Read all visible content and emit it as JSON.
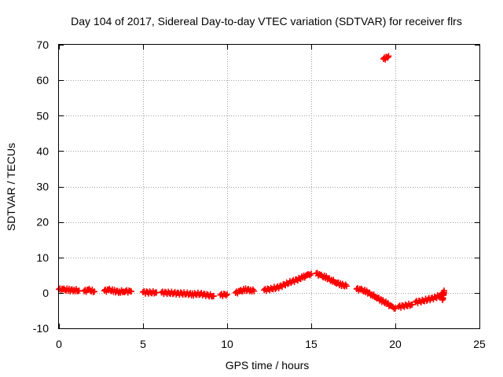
{
  "chart_data": {
    "type": "scatter",
    "title": "Day 104 of 2017, Sidereal Day-to-day VTEC variation (SDTVAR) for receiver flrs",
    "xlabel": "GPS time / hours",
    "ylabel": "SDTVAR / TECUs",
    "xlim": [
      0,
      25
    ],
    "ylim": [
      -10,
      70
    ],
    "xticks": [
      0,
      5,
      10,
      15,
      20,
      25
    ],
    "yticks": [
      -10,
      0,
      10,
      20,
      30,
      40,
      50,
      60,
      70
    ],
    "grid": true,
    "marker": "plus",
    "marker_color": "#ff0000",
    "series": [
      {
        "name": "SDTVAR",
        "segments": [
          {
            "x": [
              0.0,
              0.3,
              0.6,
              0.9,
              1.2
            ],
            "y": [
              1.0,
              0.9,
              0.8,
              0.8,
              0.6
            ]
          },
          {
            "x": [
              1.5,
              1.8,
              2.1
            ],
            "y": [
              0.5,
              0.8,
              0.4
            ]
          },
          {
            "x": [
              2.7,
              3.0,
              3.3,
              3.6,
              3.9,
              4.3
            ],
            "y": [
              0.6,
              0.8,
              0.5,
              0.3,
              0.5,
              0.4
            ]
          },
          {
            "x": [
              5.0,
              5.4,
              5.8
            ],
            "y": [
              0.2,
              0.1,
              0.1
            ]
          },
          {
            "x": [
              6.1,
              6.5,
              6.9,
              7.3,
              7.7,
              8.0,
              8.4,
              8.8,
              9.2
            ],
            "y": [
              0.1,
              0.0,
              -0.1,
              -0.2,
              -0.3,
              -0.4,
              -0.3,
              -0.6,
              -0.9
            ]
          },
          {
            "x": [
              9.6,
              10.0
            ],
            "y": [
              -0.6,
              -0.4
            ]
          },
          {
            "x": [
              10.5,
              10.8,
              11.1,
              11.4,
              11.6
            ],
            "y": [
              0.0,
              0.5,
              0.9,
              0.8,
              0.5
            ]
          },
          {
            "x": [
              12.2,
              12.6,
              13.0,
              13.4,
              13.8,
              14.2,
              14.5,
              14.8,
              15.0
            ],
            "y": [
              0.8,
              1.1,
              1.5,
              2.3,
              3.1,
              3.8,
              4.4,
              5.0,
              5.4
            ]
          },
          {
            "x": [
              15.3,
              15.6,
              15.9,
              16.2,
              16.5,
              16.8,
              17.1
            ],
            "y": [
              5.5,
              4.8,
              4.3,
              3.6,
              2.9,
              2.3,
              1.9
            ]
          },
          {
            "x": [
              17.7,
              18.0,
              18.3,
              18.6,
              18.9,
              19.2,
              19.5,
              19.8,
              20.0
            ],
            "y": [
              1.1,
              0.8,
              0.3,
              -0.5,
              -1.3,
              -2.2,
              -3.0,
              -4.0,
              -4.3
            ]
          },
          {
            "x": [
              20.2,
              20.6,
              21.0
            ],
            "y": [
              -3.9,
              -3.6,
              -3.3
            ]
          },
          {
            "x": [
              21.2,
              21.6,
              22.0,
              22.4,
              22.7,
              22.9
            ],
            "y": [
              -2.6,
              -2.3,
              -1.8,
              -1.3,
              -0.6,
              0.1
            ]
          },
          {
            "x": [
              22.8,
              22.85,
              22.9
            ],
            "y": [
              -2.0,
              -1.0,
              0.6
            ]
          },
          {
            "x": [
              19.3,
              19.45,
              19.6
            ],
            "y": [
              66.0,
              66.3,
              66.8
            ]
          }
        ]
      }
    ]
  }
}
